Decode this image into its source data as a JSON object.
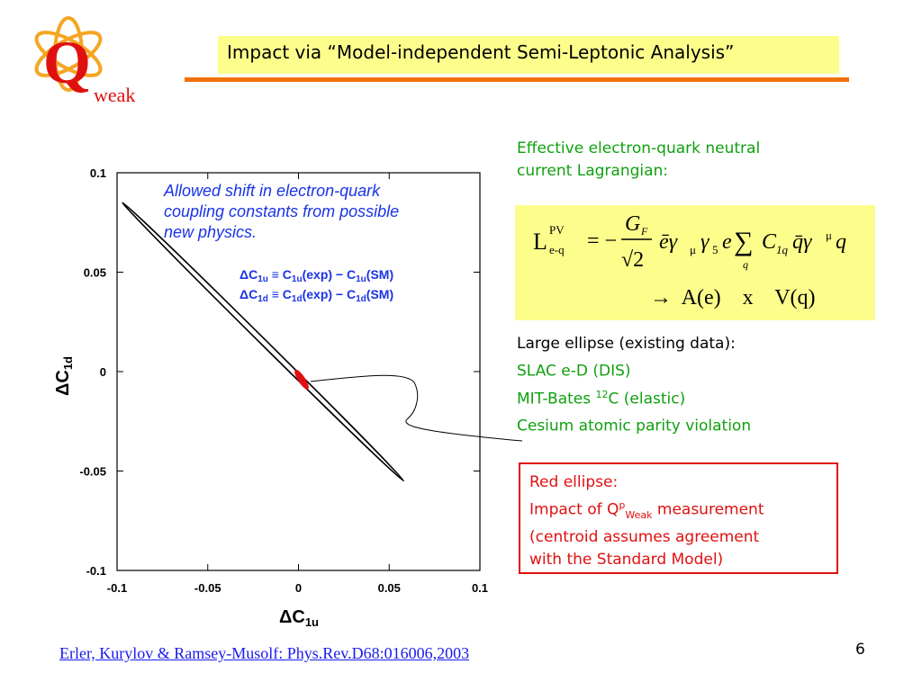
{
  "logo": {
    "letter": "Q",
    "text": "weak"
  },
  "title": "Impact via “Model-independent Semi-Leptonic Analysis”",
  "lagrangian_intro": [
    "Effective electron-quark neutral",
    "current Lagrangian:"
  ],
  "formula": {
    "lhs": "L",
    "lhs_sup": "PV",
    "lhs_sub": "e-q",
    "numerator": "G",
    "numerator_sub": "F",
    "denominator": "√2",
    "equals_minus": "= −",
    "body": "ēγ",
    "mu": "μ",
    "gamma5": "γ",
    "five": "5",
    "e": "e",
    "sum": "∑",
    "sum_sub": "q",
    "C": "C",
    "C_sub": "1q",
    "qbar": "q̄γ",
    "mu2": "μ",
    "q": "q",
    "second_line": "→  A(e)    x    V(q)"
  },
  "large_ellipse": {
    "head": "Large ellipse (existing data):",
    "items": [
      {
        "pre": "SLAC e-D  (DIS)",
        "sup": "",
        "post": ""
      },
      {
        "pre": "MIT-Bates ",
        "sup": "12",
        "post": "C  (elastic)"
      },
      {
        "pre": "Cesium atomic parity violation",
        "sup": "",
        "post": ""
      }
    ]
  },
  "red_ellipse": {
    "line1": "Red ellipse:",
    "line2_pre": "Impact of Q",
    "line2_sup": "p",
    "line2_sub": "Weak",
    "line2_post": " measurement",
    "line3": "(centroid assumes agreement",
    "line4": "with the Standard Model)"
  },
  "citation": "Erler, Kurylov & Ramsey-Musolf:   Phys.Rev.D68:016006,2003 ",
  "page_number": "6",
  "chart_data": {
    "type": "scatter",
    "annotation": [
      "Allowed shift in electron-quark",
      "coupling constants from possible",
      "new physics."
    ],
    "definitions": [
      {
        "lhs": "ΔC",
        "lhs_sub": "1u",
        "rest": " ≡ C",
        "sub1": "1u",
        "mid": "(exp) − C",
        "sub2": "1u",
        "end": "(SM)"
      },
      {
        "lhs": "ΔC",
        "lhs_sub": "1d",
        "rest": " ≡ C",
        "sub1": "1d",
        "mid": "(exp) − C",
        "sub2": "1d",
        "end": "(SM)"
      }
    ],
    "xlabel": "ΔC",
    "xlabel_sub": "1u",
    "ylabel": "ΔC",
    "ylabel_sub": "1d",
    "xlim": [
      -0.1,
      0.1
    ],
    "ylim": [
      -0.1,
      0.1
    ],
    "x_ticks": [
      "-0.1",
      "-0.05",
      "0",
      "0.05",
      "0.1"
    ],
    "y_ticks": [
      "0.1",
      "0.05",
      "0",
      "-0.05",
      "-0.1"
    ],
    "large_ellipse": {
      "center": [
        -0.02,
        0.015
      ],
      "tip_a": [
        -0.097,
        0.085
      ],
      "tip_b": [
        0.058,
        -0.055
      ],
      "color": "#000000"
    },
    "red_ellipse": {
      "center": [
        0.002,
        -0.003
      ],
      "tip_a": [
        -0.0015,
        0.0005
      ],
      "tip_b": [
        0.005,
        -0.0085
      ],
      "color": "#e01010"
    }
  }
}
